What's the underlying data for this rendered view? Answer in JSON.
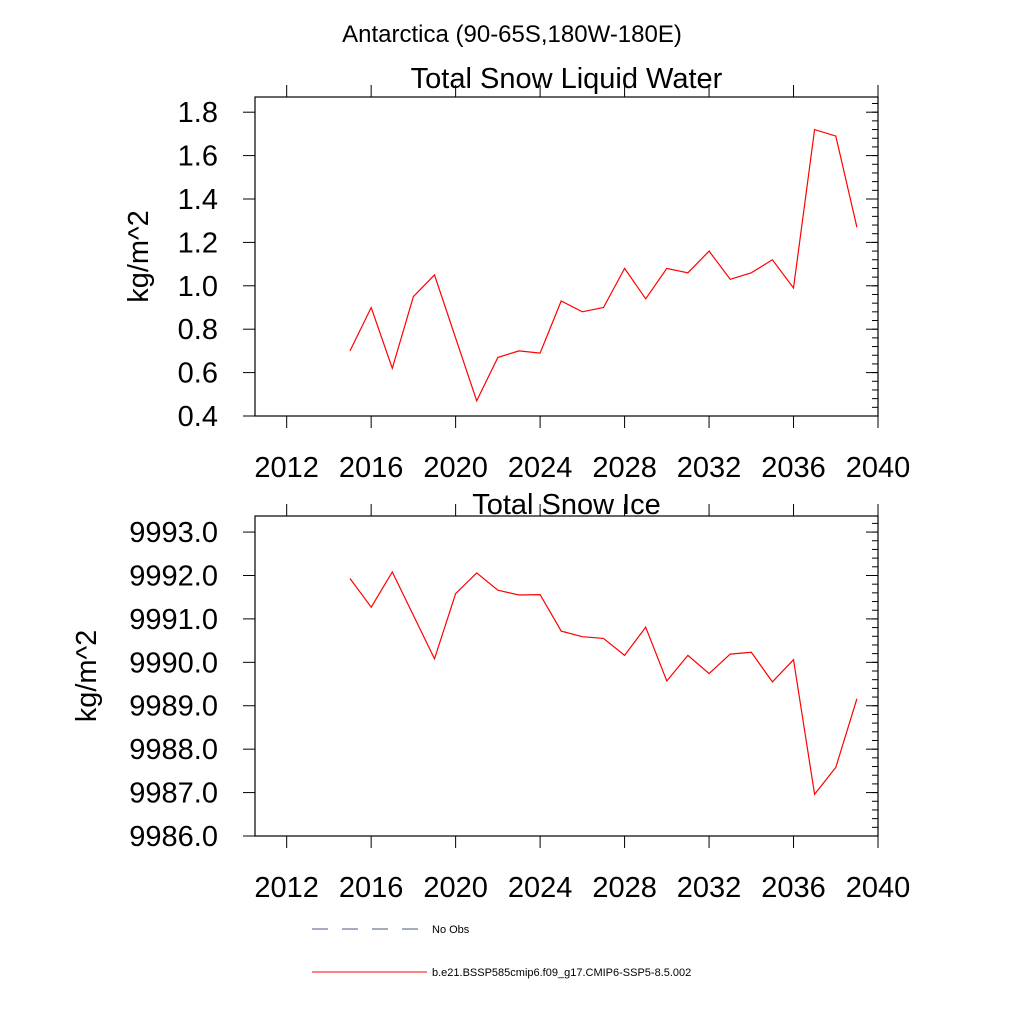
{
  "figure": {
    "suptitle": "Antarctica (90-65S,180W-180E)"
  },
  "colors": {
    "model_line": "#ff0000",
    "obs_line": "#4a5a8a",
    "axes": "#000000"
  },
  "legend": {
    "placement": "bottom",
    "entries": [
      {
        "label": "No Obs",
        "style": "dashed",
        "color": "#4a5a8a"
      },
      {
        "label": "b.e21.BSSP585cmip6.f09_g17.CMIP6-SSP5-8.5.002",
        "style": "solid",
        "color": "#ff0000"
      }
    ]
  },
  "chart_data": [
    {
      "type": "line",
      "title": "Total Snow Liquid Water",
      "xlabel": "",
      "ylabel": "kg/m^2",
      "xlim": [
        2010.5,
        2040
      ],
      "ylim": [
        0.4,
        1.87
      ],
      "xticks": [
        2012,
        2016,
        2020,
        2024,
        2028,
        2032,
        2036,
        2040
      ],
      "xtick_labels": [
        "2012",
        "2016",
        "2020",
        "2024",
        "2028",
        "2032",
        "2036",
        "2040"
      ],
      "yticks": [
        0.4,
        0.6,
        0.8,
        1.0,
        1.2,
        1.4,
        1.6,
        1.8
      ],
      "ytick_labels": [
        "0.4",
        "0.6",
        "0.8",
        "1.0",
        "1.2",
        "1.4",
        "1.6",
        "1.8"
      ],
      "grid": false,
      "x": [
        2015,
        2016,
        2017,
        2018,
        2019,
        2020,
        2021,
        2022,
        2023,
        2024,
        2025,
        2026,
        2027,
        2028,
        2029,
        2030,
        2031,
        2032,
        2033,
        2034,
        2035,
        2036,
        2037,
        2038,
        2039
      ],
      "series": [
        {
          "name": "b.e21.BSSP585cmip6.f09_g17.CMIP6-SSP5-8.5.002",
          "values": [
            0.7,
            0.9,
            0.62,
            0.95,
            1.05,
            0.76,
            0.47,
            0.67,
            0.7,
            0.69,
            0.93,
            0.88,
            0.9,
            1.08,
            0.94,
            1.08,
            1.06,
            1.16,
            1.03,
            1.06,
            1.12,
            0.99,
            1.72,
            1.69,
            1.27
          ]
        }
      ]
    },
    {
      "type": "line",
      "title": "Total Snow Ice",
      "xlabel": "",
      "ylabel": "kg/m^2",
      "xlim": [
        2010.5,
        2040
      ],
      "ylim": [
        9986.0,
        9993.37
      ],
      "xticks": [
        2012,
        2016,
        2020,
        2024,
        2028,
        2032,
        2036,
        2040
      ],
      "xtick_labels": [
        "2012",
        "2016",
        "2020",
        "2024",
        "2028",
        "2032",
        "2036",
        "2040"
      ],
      "yticks": [
        9986.0,
        9987.0,
        9988.0,
        9989.0,
        9990.0,
        9991.0,
        9992.0,
        9993.0
      ],
      "ytick_labels": [
        "9986.0",
        "9987.0",
        "9988.0",
        "9989.0",
        "9990.0",
        "9991.0",
        "9992.0",
        "9993.0"
      ],
      "grid": false,
      "x": [
        2015,
        2016,
        2017,
        2018,
        2019,
        2020,
        2021,
        2022,
        2023,
        2024,
        2025,
        2026,
        2027,
        2028,
        2029,
        2030,
        2031,
        2032,
        2033,
        2034,
        2035,
        2036,
        2037,
        2038,
        2039
      ],
      "series": [
        {
          "name": "b.e21.BSSP585cmip6.f09_g17.CMIP6-SSP5-8.5.002",
          "values": [
            9991.93,
            9991.27,
            9992.08,
            9991.08,
            9990.08,
            9991.58,
            9992.06,
            9991.66,
            9991.55,
            9991.56,
            9990.72,
            9990.59,
            9990.55,
            9990.16,
            9990.81,
            9989.57,
            9990.16,
            9989.74,
            9990.19,
            9990.23,
            9989.55,
            9990.06,
            9986.96,
            9987.58,
            9989.16
          ]
        }
      ]
    }
  ]
}
